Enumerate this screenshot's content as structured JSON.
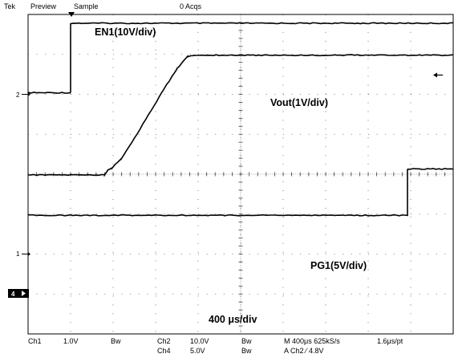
{
  "header": {
    "brand": "Tek",
    "mode": "Preview",
    "acquisition": "Sample",
    "acqs": "0 Acqs"
  },
  "markers": {
    "ch2": "2",
    "ch1": "1",
    "ch4": "4"
  },
  "trace_labels": {
    "en1": "EN1(10V/div)",
    "vout": "Vout(1V/div)",
    "pg1": "PG1(5V/div)",
    "timebase": "400 μs/div"
  },
  "footer": {
    "ch1": "Ch1",
    "ch1_scale": "1.0V",
    "bw1": "Bw",
    "ch2": "Ch2",
    "ch2_scale": "10.0V",
    "bw2": "Bw",
    "ch4": "Ch4",
    "ch4_scale": "5.0V",
    "bw3": "Bw",
    "horizontal": "M 400μs 625kS/s",
    "sample_interval": "1.6μs/pt",
    "trigger": "A  Ch2  ⁄  4.8V"
  },
  "chart_data": {
    "type": "line",
    "time_unit": "μs",
    "time_per_div_us": 400,
    "x_range_us": [
      -480,
      3520
    ],
    "voltage_unit": "V",
    "series": [
      {
        "name": "EN1",
        "volts_per_div": 10,
        "ground_div": 2.04,
        "points": [
          [
            -480,
            0
          ],
          [
            -80,
            0
          ],
          [
            -80,
            17.4
          ],
          [
            3520,
            17.4
          ]
        ]
      },
      {
        "name": "Vout",
        "volts_per_div": 1,
        "ground_div": -0.02,
        "points": [
          [
            -480,
            0
          ],
          [
            240,
            0
          ],
          [
            270,
            0.12
          ],
          [
            310,
            0.18
          ],
          [
            400,
            0.42
          ],
          [
            520,
            0.92
          ],
          [
            680,
            1.62
          ],
          [
            800,
            2.16
          ],
          [
            920,
            2.66
          ],
          [
            1020,
            2.96
          ],
          [
            1080,
            3.0
          ],
          [
            3520,
            3.0
          ]
        ]
      },
      {
        "name": "PG1",
        "volts_per_div": 5,
        "ground_div": -1.03,
        "points": [
          [
            -480,
            0
          ],
          [
            3090,
            0
          ],
          [
            3090,
            5.8
          ],
          [
            3520,
            5.8
          ]
        ]
      }
    ],
    "grid": true,
    "divisions": {
      "horizontal": 10,
      "vertical": 8
    }
  }
}
